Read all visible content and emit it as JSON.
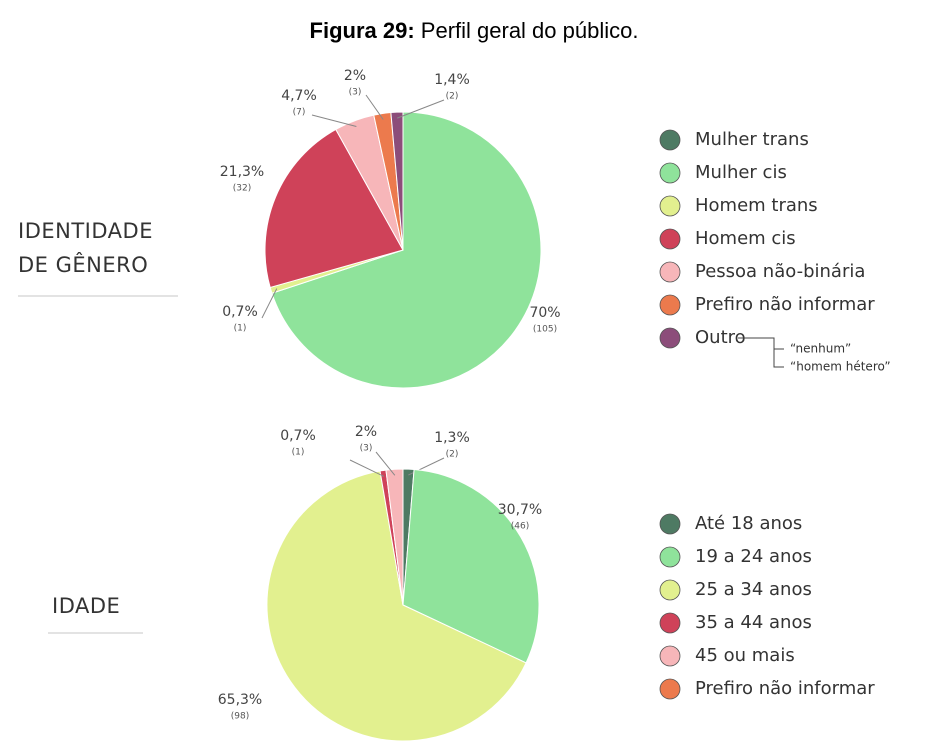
{
  "figure": {
    "label": "Figura 29:",
    "caption": "Perfil geral do público."
  },
  "chart_data": [
    {
      "type": "pie",
      "title": [
        "IDENTIDADE",
        "DE GÊNERO"
      ],
      "categories": [
        "Mulher trans",
        "Mulher cis",
        "Homem trans",
        "Homem cis",
        "Pessoa não-binária",
        "Prefiro não informar",
        "Outro"
      ],
      "values": [
        0,
        70,
        0.7,
        21.3,
        4.7,
        2,
        1.4
      ],
      "value_labels": [
        null,
        "70%",
        "0,7%",
        "21,3%",
        "4,7%",
        "2%",
        "1,4%"
      ],
      "counts": [
        0,
        105,
        1,
        32,
        7,
        3,
        2
      ],
      "count_labels": [
        null,
        "(105)",
        "(1)",
        "(32)",
        "(7)",
        "(3)",
        "(2)"
      ],
      "colors": [
        "#4e7a63",
        "#8fe39b",
        "#e2f08f",
        "#cf4259",
        "#f7b6b9",
        "#ec7a4d",
        "#8c4d7a"
      ],
      "notes": [
        "“nenhum”",
        "“homem hétero”"
      ]
    },
    {
      "type": "pie",
      "title": [
        "IDADE"
      ],
      "categories": [
        "Até 18 anos",
        "19 a 24 anos",
        "25 a 34 anos",
        "35 a 44 anos",
        "45 ou mais",
        "Prefiro não informar"
      ],
      "values": [
        1.3,
        30.7,
        65.3,
        0.7,
        2,
        0
      ],
      "value_labels": [
        "1,3%",
        "30,7%",
        "65,3%",
        "0,7%",
        "2%",
        null
      ],
      "counts": [
        2,
        46,
        98,
        1,
        3,
        0
      ],
      "count_labels": [
        "(2)",
        "(46)",
        "(98)",
        "(1)",
        "(3)",
        null
      ],
      "colors": [
        "#4e7a63",
        "#8fe39b",
        "#e2f08f",
        "#cf4259",
        "#f7b6b9",
        "#ec7a4d"
      ]
    }
  ]
}
